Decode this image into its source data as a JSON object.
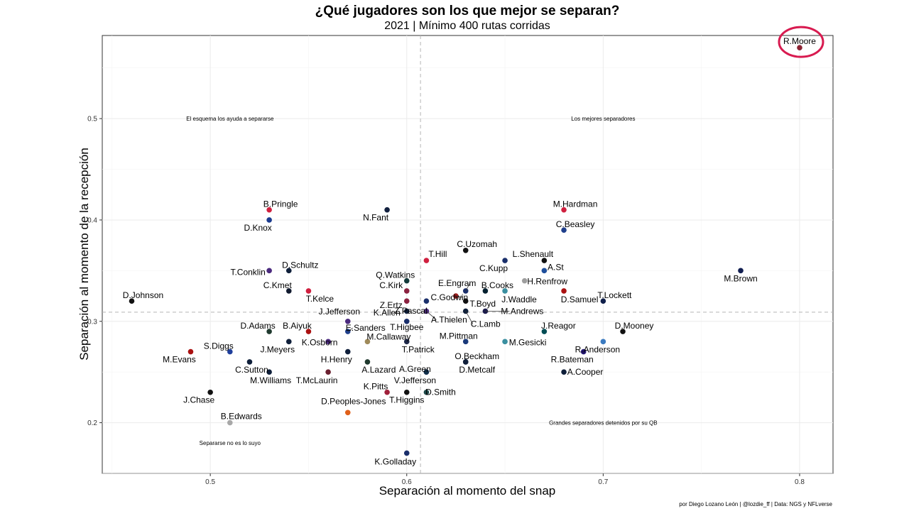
{
  "chart_data": {
    "type": "scatter",
    "title": "¿Qué jugadores son los que mejor se separan?",
    "subtitle": "2021 | Mínimo 400 rutas corridas",
    "xlabel": "Separación al momento del snap",
    "ylabel": "Separación al momento de la recepción",
    "caption": "por Diego Lozano León | @lozdie_ff | Data: NGS y NFLverse",
    "xlim": [
      0.445,
      0.817
    ],
    "ylim": [
      0.15,
      0.582
    ],
    "x_ticks": [
      0.5,
      0.6,
      0.7,
      0.8
    ],
    "x_tick_labels": [
      "0.5",
      "0.6",
      "0.7",
      "0.8"
    ],
    "y_ticks": [
      0.2,
      0.3,
      0.4,
      0.5
    ],
    "y_tick_labels": [
      "0.2",
      "0.3",
      "0.4",
      "0.5"
    ],
    "grid": true,
    "reference_lines": {
      "x": 0.607,
      "y": 0.309
    },
    "quadrant_labels": [
      {
        "text": "El esquema los ayuda a separarse",
        "x": 0.51,
        "y": 0.5
      },
      {
        "text": "Los mejores separadores",
        "x": 0.7,
        "y": 0.5
      },
      {
        "text": "Grandes separadores detenidos por su QB",
        "x": 0.7,
        "y": 0.2
      },
      {
        "text": "Separarse no es lo suyo",
        "x": 0.51,
        "y": 0.18
      }
    ],
    "highlight": {
      "player": "R.Moore",
      "color": "#d81b50"
    },
    "points": [
      {
        "name": "R.Moore",
        "x": 0.8,
        "y": 0.57,
        "color": "#8b2232"
      },
      {
        "name": "M.Brown",
        "x": 0.77,
        "y": 0.35,
        "color": "#101d50"
      },
      {
        "name": "B.Pringle",
        "x": 0.53,
        "y": 0.41,
        "color": "#d0203f"
      },
      {
        "name": "D.Knox",
        "x": 0.53,
        "y": 0.4,
        "color": "#1a3a8f"
      },
      {
        "name": "N.Fant",
        "x": 0.59,
        "y": 0.41,
        "color": "#12203f"
      },
      {
        "name": "M.Hardman",
        "x": 0.68,
        "y": 0.41,
        "color": "#d0203f"
      },
      {
        "name": "C.Beasley",
        "x": 0.68,
        "y": 0.39,
        "color": "#1f3f8c"
      },
      {
        "name": "C.Uzomah",
        "x": 0.63,
        "y": 0.37,
        "color": "#111111"
      },
      {
        "name": "T.Hill",
        "x": 0.61,
        "y": 0.36,
        "color": "#d0203f"
      },
      {
        "name": "L.Shenault",
        "x": 0.67,
        "y": 0.36,
        "color": "#111111"
      },
      {
        "name": "C.Kupp",
        "x": 0.65,
        "y": 0.36,
        "color": "#1a2f6b"
      },
      {
        "name": "A.St",
        "x": 0.67,
        "y": 0.35,
        "color": "#1f4f9c"
      },
      {
        "name": "H.Renfrow",
        "x": 0.66,
        "y": 0.34,
        "color": "#9e9e9e"
      },
      {
        "name": "T.Conklin",
        "x": 0.53,
        "y": 0.35,
        "color": "#4b2a7e"
      },
      {
        "name": "D.Schultz",
        "x": 0.54,
        "y": 0.35,
        "color": "#0f1f3a"
      },
      {
        "name": "Q.Watkins",
        "x": 0.6,
        "y": 0.34,
        "color": "#123a3a"
      },
      {
        "name": "C.Kmet",
        "x": 0.54,
        "y": 0.33,
        "color": "#111a2f"
      },
      {
        "name": "T.Kelce",
        "x": 0.55,
        "y": 0.33,
        "color": "#d0203f"
      },
      {
        "name": "C.Kirk",
        "x": 0.6,
        "y": 0.33,
        "color": "#8b2240"
      },
      {
        "name": "E.Engram",
        "x": 0.63,
        "y": 0.33,
        "color": "#1a2f6b"
      },
      {
        "name": "C.Godwin",
        "x": 0.625,
        "y": 0.325,
        "color": "#9b1b1b"
      },
      {
        "name": "B.Cooks",
        "x": 0.64,
        "y": 0.33,
        "color": "#03202f"
      },
      {
        "name": "J.Waddle",
        "x": 0.65,
        "y": 0.33,
        "color": "#3a8fa0"
      },
      {
        "name": "D.Samuel",
        "x": 0.68,
        "y": 0.33,
        "color": "#aa1111"
      },
      {
        "name": "Z.Ertz",
        "x": 0.6,
        "y": 0.32,
        "color": "#8b2240"
      },
      {
        "name": "Z.Pascal",
        "x": 0.61,
        "y": 0.32,
        "color": "#1a2f6b"
      },
      {
        "name": "T.Boyd",
        "x": 0.63,
        "y": 0.32,
        "color": "#111111"
      },
      {
        "name": "D.Johnson",
        "x": 0.46,
        "y": 0.32,
        "color": "#111111"
      },
      {
        "name": "T.Lockett",
        "x": 0.7,
        "y": 0.32,
        "color": "#0f1f4a"
      },
      {
        "name": "K.Allen",
        "x": 0.6,
        "y": 0.31,
        "color": "#0f1f3a"
      },
      {
        "name": "A.Thielen",
        "x": 0.61,
        "y": 0.31,
        "color": "#4b2a7e"
      },
      {
        "name": "C.Lamb",
        "x": 0.63,
        "y": 0.31,
        "color": "#0f1f3a"
      },
      {
        "name": "M.Andrews",
        "x": 0.64,
        "y": 0.31,
        "color": "#1a1a4a"
      },
      {
        "name": "J.Jefferson",
        "x": 0.57,
        "y": 0.3,
        "color": "#4b2a7e"
      },
      {
        "name": "T.Higbee",
        "x": 0.6,
        "y": 0.3,
        "color": "#1a2f6b"
      },
      {
        "name": "E.Sanders",
        "x": 0.57,
        "y": 0.29,
        "color": "#1f3f8c"
      },
      {
        "name": "D.Adams",
        "x": 0.53,
        "y": 0.29,
        "color": "#203a2f"
      },
      {
        "name": "B.Aiyuk",
        "x": 0.55,
        "y": 0.29,
        "color": "#aa1111"
      },
      {
        "name": "J.Reagor",
        "x": 0.67,
        "y": 0.29,
        "color": "#004c54"
      },
      {
        "name": "D.Mooney",
        "x": 0.71,
        "y": 0.29,
        "color": "#111111"
      },
      {
        "name": "K.Osborn",
        "x": 0.56,
        "y": 0.28,
        "color": "#4b2a7e"
      },
      {
        "name": "M.Callaway",
        "x": 0.58,
        "y": 0.28,
        "color": "#9f8a5a"
      },
      {
        "name": "T.Patrick",
        "x": 0.6,
        "y": 0.28,
        "color": "#1f2a4a"
      },
      {
        "name": "M.Pittman",
        "x": 0.63,
        "y": 0.28,
        "color": "#1a3a7a"
      },
      {
        "name": "M.Gesicki",
        "x": 0.65,
        "y": 0.28,
        "color": "#3a8fa0"
      },
      {
        "name": "R.Anderson",
        "x": 0.7,
        "y": 0.28,
        "color": "#3a7ac0"
      },
      {
        "name": "S.Diggs",
        "x": 0.51,
        "y": 0.27,
        "color": "#1f3f9c"
      },
      {
        "name": "J.Meyers",
        "x": 0.54,
        "y": 0.28,
        "color": "#0f1f3a"
      },
      {
        "name": "H.Henry",
        "x": 0.57,
        "y": 0.27,
        "color": "#0f1f3a"
      },
      {
        "name": "M.Evans",
        "x": 0.49,
        "y": 0.27,
        "color": "#aa1111"
      },
      {
        "name": "R.Bateman",
        "x": 0.69,
        "y": 0.27,
        "color": "#241773"
      },
      {
        "name": "O.Beckham",
        "x": 0.63,
        "y": 0.26,
        "color": "#0f1f3a"
      },
      {
        "name": "C.Sutton",
        "x": 0.52,
        "y": 0.26,
        "color": "#0f1f3a"
      },
      {
        "name": "A.Lazard",
        "x": 0.58,
        "y": 0.26,
        "color": "#203a2f"
      },
      {
        "name": "A.Green",
        "x": 0.61,
        "y": 0.25,
        "color": "#4b2a7e"
      },
      {
        "name": "D.Metcalf",
        "x": 0.63,
        "y": 0.26,
        "color": "#0f1f3a"
      },
      {
        "name": "M.Williams",
        "x": 0.53,
        "y": 0.25,
        "color": "#0f1f3a"
      },
      {
        "name": "T.McLaurin",
        "x": 0.56,
        "y": 0.25,
        "color": "#6a1f2f"
      },
      {
        "name": "V.Jefferson",
        "x": 0.61,
        "y": 0.25,
        "color": "#0f2f4a"
      },
      {
        "name": "A.Cooper",
        "x": 0.68,
        "y": 0.25,
        "color": "#0f1f3a"
      },
      {
        "name": "K.Pitts",
        "x": 0.59,
        "y": 0.23,
        "color": "#a0203a"
      },
      {
        "name": "T.Higgins",
        "x": 0.6,
        "y": 0.23,
        "color": "#111111"
      },
      {
        "name": "D.Smith",
        "x": 0.61,
        "y": 0.23,
        "color": "#1f4a4a"
      },
      {
        "name": "J.Chase",
        "x": 0.5,
        "y": 0.23,
        "color": "#111111"
      },
      {
        "name": "D.Peoples-Jones",
        "x": 0.57,
        "y": 0.21,
        "color": "#e0601a"
      },
      {
        "name": "B.Edwards",
        "x": 0.51,
        "y": 0.2,
        "color": "#a8a8a8"
      },
      {
        "name": "K.Golladay",
        "x": 0.6,
        "y": 0.17,
        "color": "#1a2f6b"
      }
    ]
  }
}
